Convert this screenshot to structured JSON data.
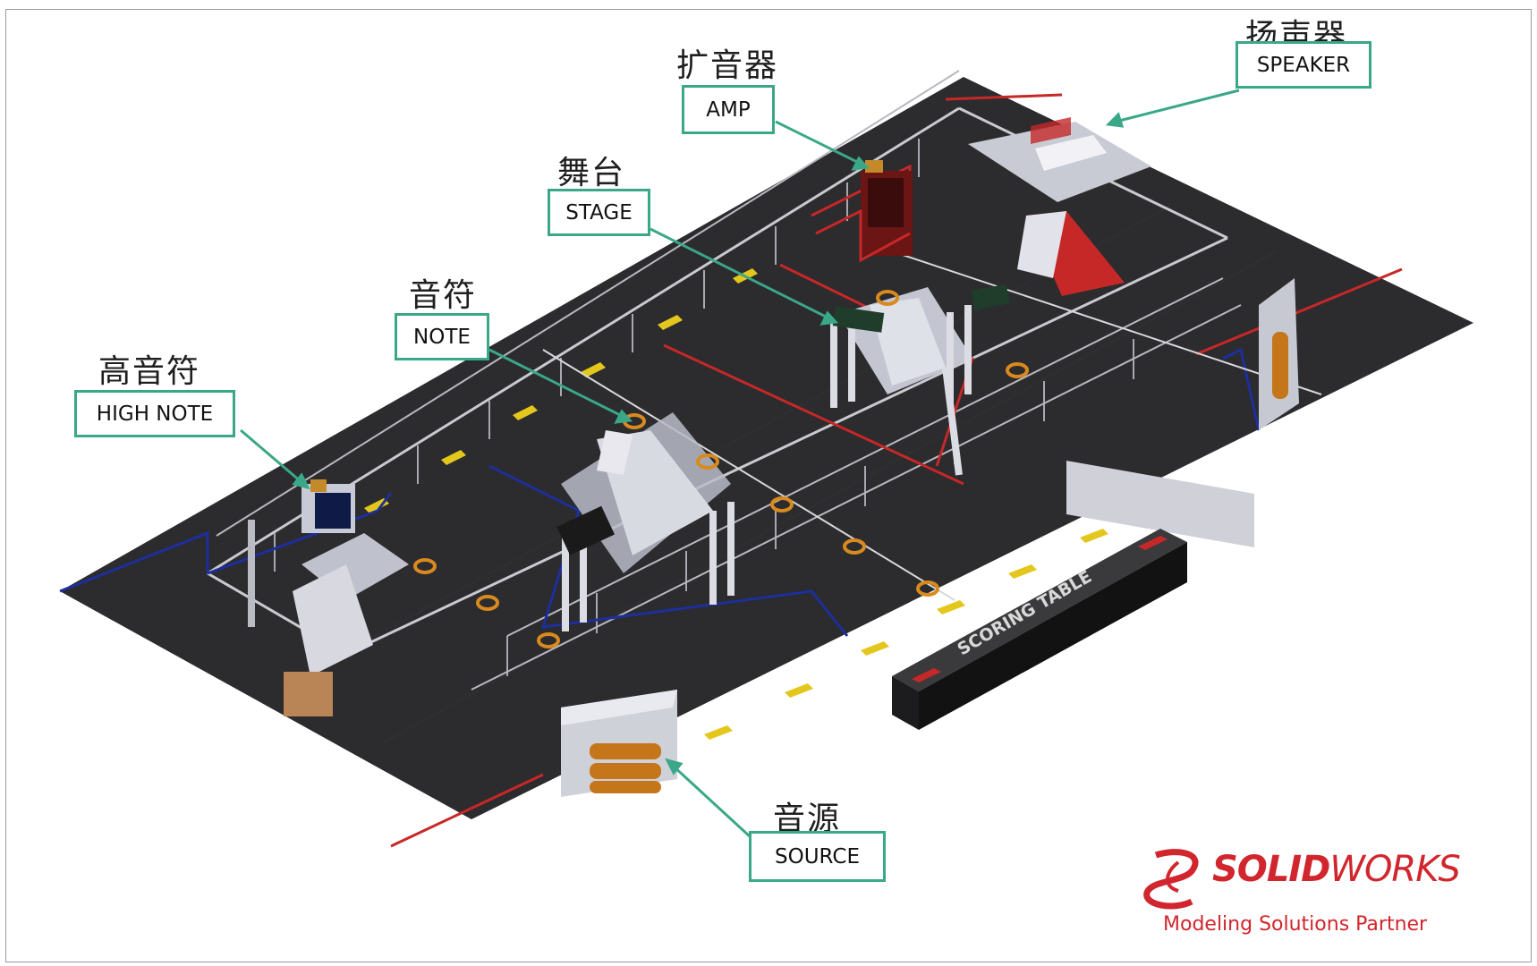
{
  "labels": {
    "high_note": {
      "zh": "高音符",
      "en": "HIGH NOTE"
    },
    "note": {
      "zh": "音符",
      "en": "NOTE"
    },
    "stage": {
      "zh": "舞台",
      "en": "STAGE"
    },
    "amp": {
      "zh": "扩音器",
      "en": "AMP"
    },
    "speaker": {
      "zh": "扬声器",
      "en": "SPEAKER"
    },
    "source": {
      "zh": "音源",
      "en": "SOURCE"
    }
  },
  "field": {
    "scoring_table_label": "SCORING TABLE"
  },
  "logo": {
    "brand_prefix": "SOLID",
    "brand_suffix": "WORKS",
    "tagline": "Modeling Solutions Partner"
  },
  "colors": {
    "carpet": "#2c2b2e",
    "label_border": "#3aa888",
    "alliance_red": "#c62828",
    "alliance_blue": "#1d2f9b",
    "note_orange": "#d98a1e",
    "brand_red": "#d1262d"
  }
}
